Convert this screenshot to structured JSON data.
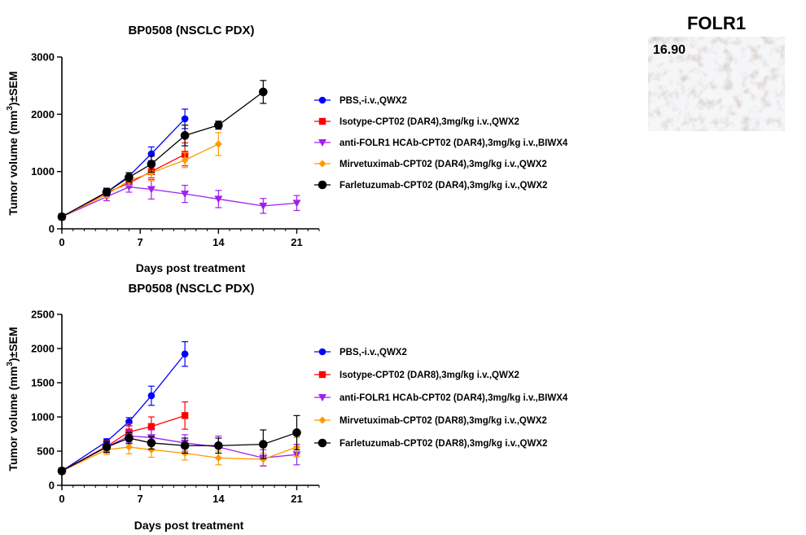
{
  "panel": {
    "title": "FOLR1",
    "score": "16.90"
  },
  "chart_data": [
    {
      "type": "line",
      "title": "BP0508 (NSCLC PDX)",
      "xlabel": "Days post treatment",
      "ylabel": "Tumor volume (mm3)±SEM",
      "xlim": [
        0,
        23
      ],
      "ylim": [
        0,
        3000
      ],
      "xticks": [
        0,
        7,
        14,
        21
      ],
      "yticks": [
        0,
        1000,
        2000,
        3000
      ],
      "grid": false,
      "legend_position": "right",
      "series": [
        {
          "name": "PBS,-i.v.,QWX2",
          "color": "#0000ff",
          "marker": "circle",
          "x": [
            0,
            4,
            6,
            8,
            11
          ],
          "y": [
            210,
            640,
            920,
            1310,
            1920
          ],
          "err": [
            30,
            70,
            60,
            120,
            170
          ]
        },
        {
          "name": "Isotype-CPT02 (DAR4),3mg/kg i.v.,QWX2",
          "color": "#ff0000",
          "marker": "square",
          "x": [
            0,
            4,
            6,
            8,
            11
          ],
          "y": [
            210,
            630,
            800,
            1000,
            1300
          ],
          "err": [
            30,
            60,
            80,
            110,
            200
          ]
        },
        {
          "name": "anti-FOLR1 HCAb-CPT02 (DAR4),3mg/kg i.v.,BIWX4",
          "color": "#a020f0",
          "marker": "triangle-down",
          "x": [
            0,
            4,
            6,
            8,
            11,
            14,
            18,
            21
          ],
          "y": [
            210,
            560,
            730,
            690,
            610,
            520,
            400,
            450
          ],
          "err": [
            30,
            70,
            90,
            170,
            150,
            150,
            130,
            130
          ]
        },
        {
          "name": "Mirvetuximab-CPT02 (DAR4),3mg/kg i.v.,QWX2",
          "color": "#ff9900",
          "marker": "diamond",
          "x": [
            0,
            4,
            6,
            8,
            11,
            14
          ],
          "y": [
            210,
            600,
            840,
            980,
            1200,
            1480
          ],
          "err": [
            30,
            60,
            80,
            140,
            130,
            200
          ]
        },
        {
          "name": "Farletuzumab-CPT02 (DAR4),3mg/kg i.v.,QWX2",
          "color": "#000000",
          "marker": "circle-large",
          "x": [
            0,
            4,
            6,
            8,
            11,
            14,
            18
          ],
          "y": [
            210,
            640,
            900,
            1130,
            1630,
            1810,
            2390
          ],
          "err": [
            30,
            60,
            80,
            140,
            180,
            70,
            200
          ]
        }
      ]
    },
    {
      "type": "line",
      "title": "BP0508 (NSCLC PDX)",
      "xlabel": "Days post treatment",
      "ylabel": "Tumor volume (mm3)±SEM",
      "xlim": [
        0,
        23
      ],
      "ylim": [
        0,
        2500
      ],
      "xticks": [
        0,
        7,
        14,
        21
      ],
      "yticks": [
        0,
        500,
        1000,
        1500,
        2000,
        2500
      ],
      "grid": false,
      "legend_position": "right",
      "series": [
        {
          "name": "PBS,-i.v.,QWX2",
          "color": "#0000ff",
          "marker": "circle",
          "x": [
            0,
            4,
            6,
            8,
            11
          ],
          "y": [
            210,
            640,
            930,
            1310,
            1920
          ],
          "err": [
            30,
            40,
            60,
            140,
            180
          ]
        },
        {
          "name": "Isotype-CPT02 (DAR8),3mg/kg i.v.,QWX2",
          "color": "#ff0000",
          "marker": "square",
          "x": [
            0,
            4,
            6,
            8,
            11
          ],
          "y": [
            210,
            570,
            780,
            860,
            1020
          ],
          "err": [
            30,
            80,
            120,
            140,
            200
          ]
        },
        {
          "name": "anti-FOLR1 HCAb-CPT02 (DAR4),3mg/kg i.v.,BIWX4",
          "color": "#a020f0",
          "marker": "triangle-down",
          "x": [
            0,
            4,
            6,
            8,
            11,
            14,
            18,
            21
          ],
          "y": [
            210,
            560,
            720,
            700,
            620,
            560,
            400,
            450
          ],
          "err": [
            30,
            80,
            90,
            110,
            120,
            160,
            120,
            150
          ]
        },
        {
          "name": "Mirvetuximab-CPT02 (DAR8),3mg/kg i.v.,QWX2",
          "color": "#ff9900",
          "marker": "diamond",
          "x": [
            0,
            4,
            6,
            8,
            11,
            14,
            18,
            21
          ],
          "y": [
            210,
            520,
            560,
            520,
            470,
            400,
            380,
            560
          ],
          "err": [
            30,
            70,
            100,
            110,
            100,
            100,
            90,
            140
          ]
        },
        {
          "name": "Farletuzumab-CPT02 (DAR8),3mg/kg i.v.,QWX2",
          "color": "#000000",
          "marker": "circle-large",
          "x": [
            0,
            4,
            6,
            8,
            11,
            14,
            18,
            21
          ],
          "y": [
            210,
            560,
            690,
            620,
            580,
            580,
            600,
            770
          ],
          "err": [
            30,
            80,
            80,
            90,
            110,
            110,
            210,
            250
          ]
        }
      ]
    }
  ]
}
